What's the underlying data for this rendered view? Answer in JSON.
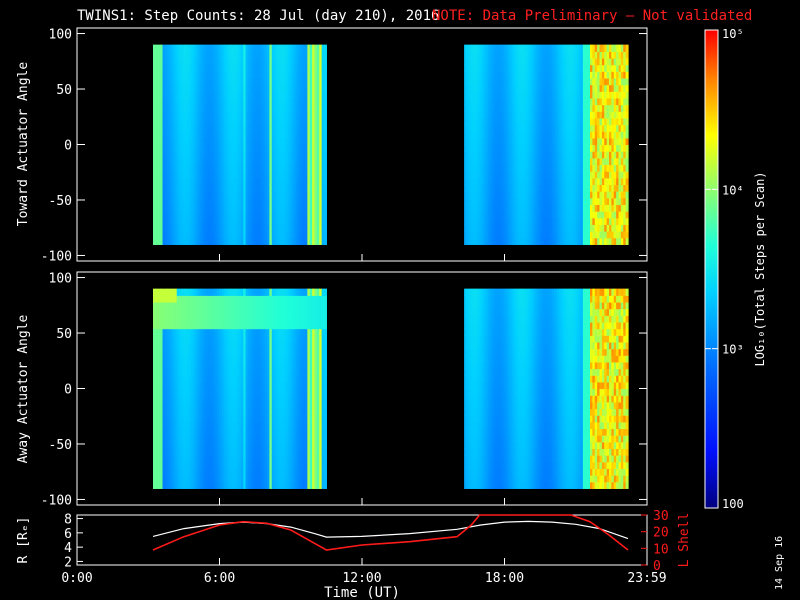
{
  "chart_data": {
    "type": "heatmap",
    "title": "TWINS1: Step Counts: 28 Jul (day 210), 2016",
    "note": "NOTE: Data Preliminary — Not validated",
    "panels": [
      {
        "ylabel": "Toward Actuator Angle",
        "ylim": [
          -105,
          105
        ],
        "yticks": [
          "100",
          "50",
          "0",
          "-50",
          "-100"
        ],
        "yvalues": [
          100,
          50,
          0,
          -50,
          -100
        ],
        "data_intervals_hours": [
          [
            3.2,
            10.5
          ],
          [
            16.3,
            23.2
          ]
        ]
      },
      {
        "ylabel": "Away Actuator Angle",
        "ylim": [
          -105,
          105
        ],
        "yticks": [
          "100",
          "50",
          "0",
          "-50",
          "-100"
        ],
        "yvalues": [
          100,
          50,
          0,
          -50,
          -100
        ],
        "data_intervals_hours": [
          [
            3.2,
            10.5
          ],
          [
            16.3,
            23.2
          ]
        ]
      }
    ],
    "orbit_panel": {
      "left_label": "R [Rₑ]",
      "left_ticks": [
        "8",
        "6",
        "4",
        "2"
      ],
      "left_values": [
        8,
        6,
        4,
        2
      ],
      "left_ylim": [
        1.5,
        8.5
      ],
      "right_label": "L Shell",
      "right_ticks": [
        "30",
        "20",
        "10",
        "0"
      ],
      "right_values": [
        30,
        20,
        10,
        0
      ],
      "right_ylim": [
        0,
        30
      ],
      "r_series": {
        "x": [
          3.2,
          4.5,
          6.0,
          7.0,
          8.0,
          9.0,
          10.0,
          10.5,
          12.0,
          14.0,
          16.0,
          17.0,
          18.0,
          19.0,
          20.0,
          21.0,
          22.0,
          23.2
        ],
        "y": [
          5.5,
          6.6,
          7.3,
          7.5,
          7.3,
          6.8,
          5.9,
          5.4,
          5.5,
          5.9,
          6.5,
          7.1,
          7.5,
          7.6,
          7.5,
          7.2,
          6.6,
          5.2
        ]
      },
      "l_series": {
        "x": [
          3.2,
          4.5,
          6.0,
          7.0,
          8.0,
          9.0,
          10.0,
          10.5,
          12.0,
          14.0,
          16.0,
          16.6,
          16.95,
          20.8,
          21.6,
          22.4,
          23.2
        ],
        "y": [
          9,
          17,
          24,
          26,
          25,
          21,
          13,
          9,
          12,
          14,
          17,
          24,
          30,
          30,
          26,
          18,
          9
        ]
      }
    },
    "xaxis": {
      "label": "Time (UT)",
      "xlim": [
        0,
        24
      ],
      "ticks": [
        "0:00",
        "6:00",
        "12:00",
        "18:00",
        "23:59"
      ],
      "tick_hours": [
        0,
        6,
        12,
        18,
        24
      ]
    },
    "colorbar": {
      "label": "LOG₁₀(Total Steps per Scan)",
      "scale": "log",
      "range": [
        100,
        100000
      ],
      "tick_labels": [
        "10⁵",
        "10⁴",
        "10³",
        "100"
      ],
      "tick_values": [
        100000,
        10000,
        1000,
        100
      ]
    },
    "date_stamp": "14 Sep 16"
  },
  "colors": {
    "background": "#000000",
    "note": "#ff2020",
    "l_shell": "#ff1a1a",
    "r_line": "#ffffff"
  }
}
